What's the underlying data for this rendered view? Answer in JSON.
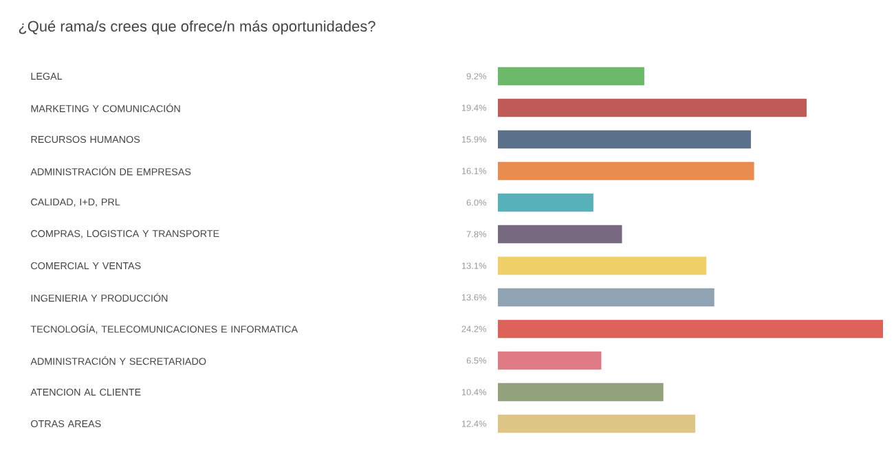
{
  "chart_data": {
    "type": "bar",
    "orientation": "horizontal",
    "title": "¿Qué rama/s crees que ofrece/n más oportunidades?",
    "categories": [
      "LEGAL",
      "MARKETING Y COMUNICACIÓN",
      "RECURSOS HUMANOS",
      "ADMINISTRACIÓN DE EMPRESAS",
      "CALIDAD, I+D, PRL",
      "COMPRAS, LOGISTICA Y TRANSPORTE",
      "COMERCIAL Y VENTAS",
      "INGENIERIA Y PRODUCCIÓN",
      "TECNOLOGÍA, TELECOMUNICACIONES E INFORMATICA",
      "ADMINISTRACIÓN Y SECRETARIADO",
      "ATENCION AL CLIENTE",
      "OTRAS AREAS"
    ],
    "values": [
      9.2,
      19.4,
      15.9,
      16.1,
      6.0,
      7.8,
      13.1,
      13.6,
      24.2,
      6.5,
      10.4,
      12.4
    ],
    "value_labels": [
      "9.2%",
      "19.4%",
      "15.9%",
      "16.1%",
      "6.0%",
      "7.8%",
      "13.1%",
      "13.6%",
      "24.2%",
      "6.5%",
      "10.4%",
      "12.4%"
    ],
    "colors": [
      "#6cb96a",
      "#c05a58",
      "#5b7089",
      "#e88c50",
      "#56b2b8",
      "#776a80",
      "#eecf68",
      "#8fa3b3",
      "#dd6259",
      "#df7b85",
      "#91a27c",
      "#ddc586"
    ]
  }
}
